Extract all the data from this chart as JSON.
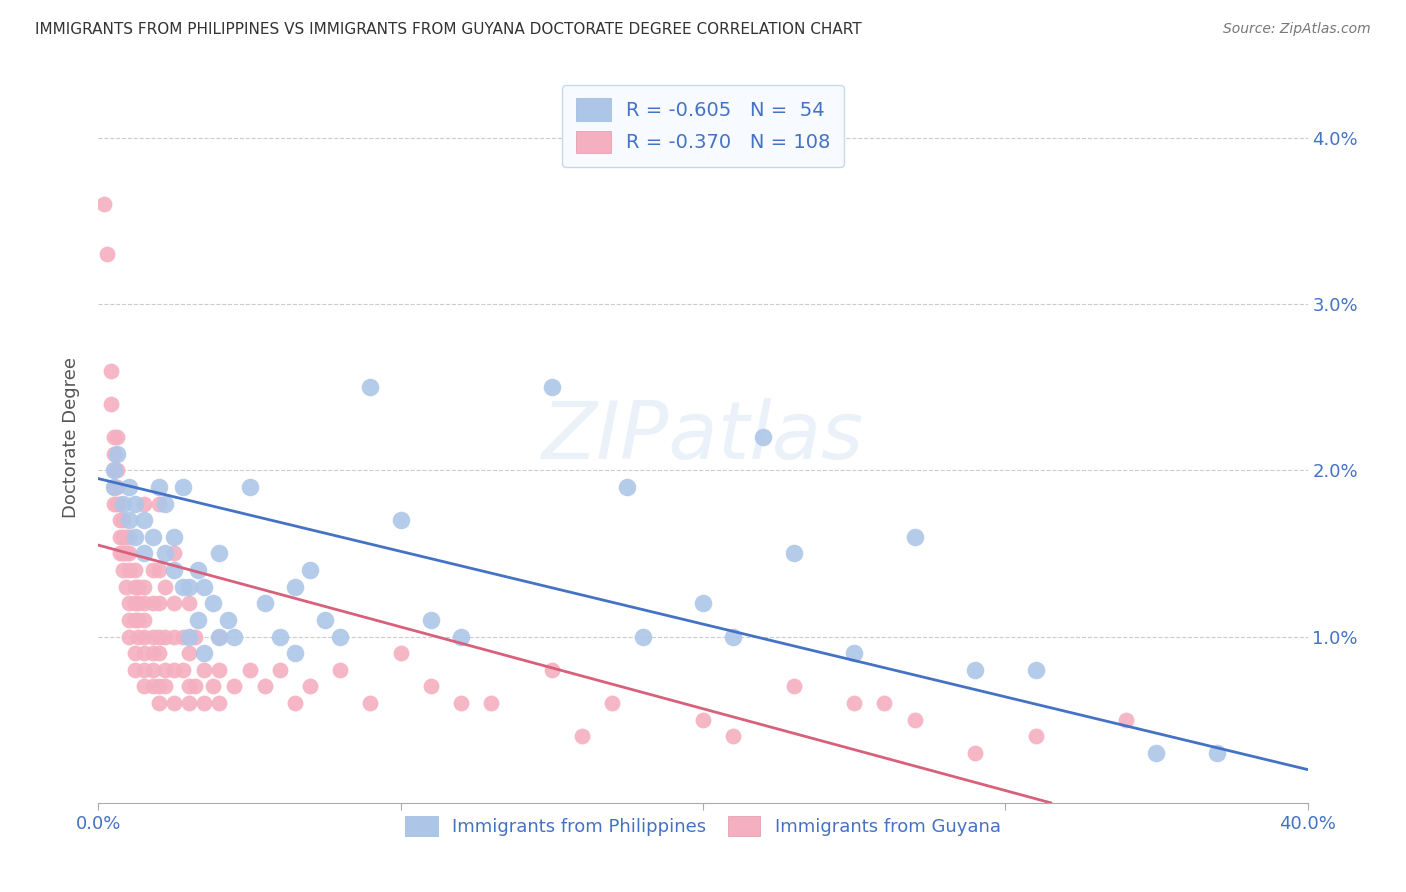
{
  "title": "IMMIGRANTS FROM PHILIPPINES VS IMMIGRANTS FROM GUYANA DOCTORATE DEGREE CORRELATION CHART",
  "source": "Source: ZipAtlas.com",
  "ylabel": "Doctorate Degree",
  "yticks": [
    0.0,
    0.01,
    0.02,
    0.03,
    0.04
  ],
  "xlim": [
    0.0,
    0.4
  ],
  "ylim": [
    0.0,
    0.044
  ],
  "philippines_color": "#adc6e8",
  "guyana_color": "#f4afc0",
  "philippines_line_color": "#4472c4",
  "guyana_line_color": "#d9607a",
  "watermark": "ZIPatlas",
  "legend_label_1": "R = -0.605   N =  54",
  "legend_label_2": "R = -0.370   N = 108",
  "bottom_label_1": "Immigrants from Philippines",
  "bottom_label_2": "Immigrants from Guyana",
  "legend_text_color": "#4472c4",
  "philippines_scatter": [
    [
      0.005,
      0.02
    ],
    [
      0.005,
      0.019
    ],
    [
      0.006,
      0.021
    ],
    [
      0.008,
      0.018
    ],
    [
      0.01,
      0.019
    ],
    [
      0.01,
      0.017
    ],
    [
      0.012,
      0.018
    ],
    [
      0.012,
      0.016
    ],
    [
      0.015,
      0.017
    ],
    [
      0.015,
      0.015
    ],
    [
      0.018,
      0.016
    ],
    [
      0.02,
      0.019
    ],
    [
      0.022,
      0.018
    ],
    [
      0.022,
      0.015
    ],
    [
      0.025,
      0.016
    ],
    [
      0.025,
      0.014
    ],
    [
      0.028,
      0.019
    ],
    [
      0.028,
      0.013
    ],
    [
      0.03,
      0.013
    ],
    [
      0.03,
      0.01
    ],
    [
      0.033,
      0.014
    ],
    [
      0.033,
      0.011
    ],
    [
      0.035,
      0.013
    ],
    [
      0.035,
      0.009
    ],
    [
      0.038,
      0.012
    ],
    [
      0.04,
      0.015
    ],
    [
      0.04,
      0.01
    ],
    [
      0.043,
      0.011
    ],
    [
      0.045,
      0.01
    ],
    [
      0.05,
      0.019
    ],
    [
      0.055,
      0.012
    ],
    [
      0.06,
      0.01
    ],
    [
      0.065,
      0.013
    ],
    [
      0.065,
      0.009
    ],
    [
      0.07,
      0.014
    ],
    [
      0.075,
      0.011
    ],
    [
      0.08,
      0.01
    ],
    [
      0.09,
      0.025
    ],
    [
      0.1,
      0.017
    ],
    [
      0.11,
      0.011
    ],
    [
      0.12,
      0.01
    ],
    [
      0.15,
      0.025
    ],
    [
      0.175,
      0.019
    ],
    [
      0.18,
      0.01
    ],
    [
      0.2,
      0.012
    ],
    [
      0.21,
      0.01
    ],
    [
      0.22,
      0.022
    ],
    [
      0.23,
      0.015
    ],
    [
      0.25,
      0.009
    ],
    [
      0.27,
      0.016
    ],
    [
      0.29,
      0.008
    ],
    [
      0.31,
      0.008
    ],
    [
      0.35,
      0.003
    ],
    [
      0.37,
      0.003
    ]
  ],
  "guyana_scatter": [
    [
      0.002,
      0.036
    ],
    [
      0.003,
      0.033
    ],
    [
      0.004,
      0.026
    ],
    [
      0.004,
      0.024
    ],
    [
      0.005,
      0.022
    ],
    [
      0.005,
      0.021
    ],
    [
      0.005,
      0.02
    ],
    [
      0.005,
      0.019
    ],
    [
      0.005,
      0.018
    ],
    [
      0.006,
      0.022
    ],
    [
      0.006,
      0.02
    ],
    [
      0.006,
      0.019
    ],
    [
      0.006,
      0.018
    ],
    [
      0.007,
      0.018
    ],
    [
      0.007,
      0.017
    ],
    [
      0.007,
      0.016
    ],
    [
      0.007,
      0.015
    ],
    [
      0.008,
      0.017
    ],
    [
      0.008,
      0.016
    ],
    [
      0.008,
      0.015
    ],
    [
      0.008,
      0.014
    ],
    [
      0.009,
      0.016
    ],
    [
      0.009,
      0.015
    ],
    [
      0.009,
      0.013
    ],
    [
      0.01,
      0.016
    ],
    [
      0.01,
      0.015
    ],
    [
      0.01,
      0.014
    ],
    [
      0.01,
      0.012
    ],
    [
      0.01,
      0.011
    ],
    [
      0.01,
      0.01
    ],
    [
      0.012,
      0.014
    ],
    [
      0.012,
      0.013
    ],
    [
      0.012,
      0.012
    ],
    [
      0.012,
      0.011
    ],
    [
      0.012,
      0.009
    ],
    [
      0.012,
      0.008
    ],
    [
      0.013,
      0.013
    ],
    [
      0.013,
      0.012
    ],
    [
      0.013,
      0.011
    ],
    [
      0.013,
      0.01
    ],
    [
      0.015,
      0.018
    ],
    [
      0.015,
      0.013
    ],
    [
      0.015,
      0.012
    ],
    [
      0.015,
      0.011
    ],
    [
      0.015,
      0.01
    ],
    [
      0.015,
      0.009
    ],
    [
      0.015,
      0.008
    ],
    [
      0.015,
      0.007
    ],
    [
      0.018,
      0.014
    ],
    [
      0.018,
      0.012
    ],
    [
      0.018,
      0.01
    ],
    [
      0.018,
      0.009
    ],
    [
      0.018,
      0.008
    ],
    [
      0.018,
      0.007
    ],
    [
      0.02,
      0.018
    ],
    [
      0.02,
      0.014
    ],
    [
      0.02,
      0.012
    ],
    [
      0.02,
      0.01
    ],
    [
      0.02,
      0.009
    ],
    [
      0.02,
      0.007
    ],
    [
      0.02,
      0.006
    ],
    [
      0.022,
      0.013
    ],
    [
      0.022,
      0.01
    ],
    [
      0.022,
      0.008
    ],
    [
      0.022,
      0.007
    ],
    [
      0.025,
      0.015
    ],
    [
      0.025,
      0.012
    ],
    [
      0.025,
      0.01
    ],
    [
      0.025,
      0.008
    ],
    [
      0.025,
      0.006
    ],
    [
      0.028,
      0.01
    ],
    [
      0.028,
      0.008
    ],
    [
      0.03,
      0.012
    ],
    [
      0.03,
      0.009
    ],
    [
      0.03,
      0.007
    ],
    [
      0.03,
      0.006
    ],
    [
      0.032,
      0.01
    ],
    [
      0.032,
      0.007
    ],
    [
      0.035,
      0.008
    ],
    [
      0.035,
      0.006
    ],
    [
      0.038,
      0.007
    ],
    [
      0.04,
      0.01
    ],
    [
      0.04,
      0.008
    ],
    [
      0.04,
      0.006
    ],
    [
      0.045,
      0.007
    ],
    [
      0.05,
      0.008
    ],
    [
      0.055,
      0.007
    ],
    [
      0.06,
      0.008
    ],
    [
      0.065,
      0.006
    ],
    [
      0.07,
      0.007
    ],
    [
      0.08,
      0.008
    ],
    [
      0.09,
      0.006
    ],
    [
      0.1,
      0.009
    ],
    [
      0.11,
      0.007
    ],
    [
      0.12,
      0.006
    ],
    [
      0.13,
      0.006
    ],
    [
      0.15,
      0.008
    ],
    [
      0.16,
      0.004
    ],
    [
      0.17,
      0.006
    ],
    [
      0.2,
      0.005
    ],
    [
      0.21,
      0.004
    ],
    [
      0.23,
      0.007
    ],
    [
      0.25,
      0.006
    ],
    [
      0.26,
      0.006
    ],
    [
      0.27,
      0.005
    ],
    [
      0.29,
      0.003
    ],
    [
      0.31,
      0.004
    ],
    [
      0.34,
      0.005
    ]
  ],
  "philippines_line": {
    "x0": 0.0,
    "y0": 0.0195,
    "x1": 0.4,
    "y1": 0.002
  },
  "guyana_line": {
    "x0": 0.0,
    "y0": 0.0155,
    "x1": 0.315,
    "y1": 0.0
  },
  "background_color": "#ffffff",
  "grid_color": "#cccccc",
  "title_color": "#333333",
  "tick_color": "#4472c4",
  "legend_box_color": "#f7faff",
  "legend_border_color": "#c8d8ee"
}
